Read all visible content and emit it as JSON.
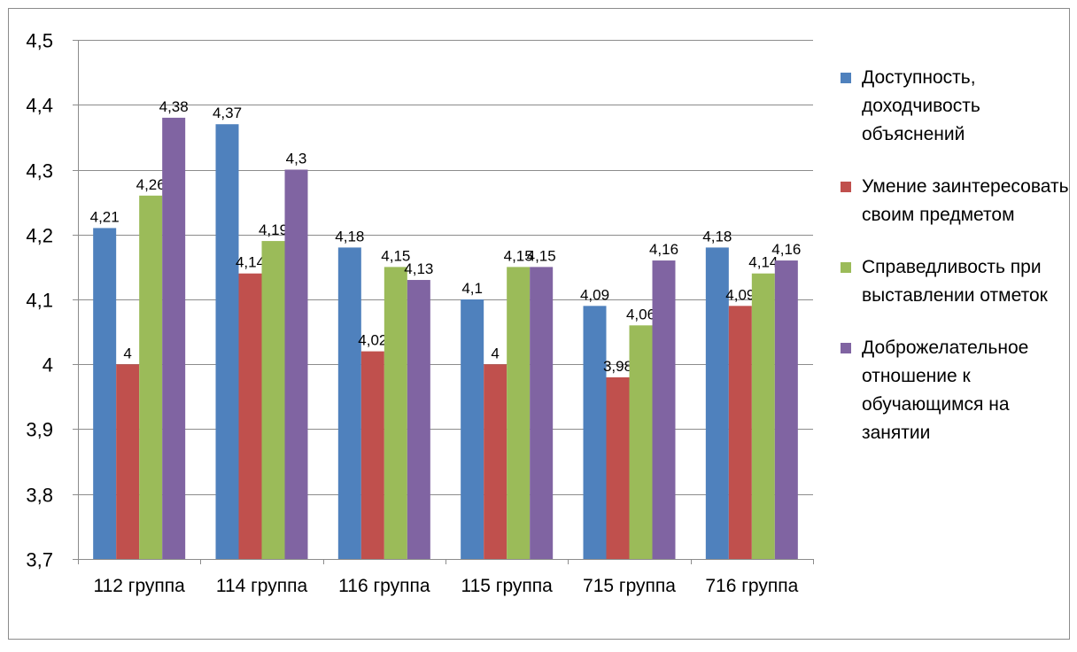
{
  "chart_data": {
    "type": "bar",
    "categories": [
      "112 группа",
      "114 группа",
      "116 группа",
      "115 группа",
      "715 группа",
      "716 группа"
    ],
    "series": [
      {
        "name": "Доступность, доходчивость объяснений",
        "color": "#4F81BD",
        "values": [
          4.21,
          4.37,
          4.18,
          4.1,
          4.09,
          4.18
        ],
        "labels": [
          "4,21",
          "4,37",
          "4,18",
          "4,1",
          "4,09",
          "4,18"
        ]
      },
      {
        "name": "Умение заинтересовать своим предметом",
        "color": "#C0504D",
        "values": [
          4.0,
          4.14,
          4.02,
          4.0,
          3.98,
          4.09
        ],
        "labels": [
          "4",
          "4,14",
          "4,02",
          "4",
          "3,98",
          "4,09"
        ]
      },
      {
        "name": "Справедливость при выставлении отметок",
        "color": "#9BBB59",
        "values": [
          4.26,
          4.19,
          4.15,
          4.15,
          4.06,
          4.14
        ],
        "labels": [
          "4,26",
          "4,19",
          "4,15",
          "4,15",
          "4,06",
          "4,14"
        ]
      },
      {
        "name": "Доброжелательное отношение к обучающимся на занятии",
        "color": "#8064A2",
        "values": [
          4.38,
          4.3,
          4.13,
          4.15,
          4.16,
          4.16
        ],
        "labels": [
          "4,38",
          "4,3",
          "4,13",
          "4,15",
          "4,16",
          "4,16"
        ]
      }
    ],
    "ylim": [
      3.7,
      4.5
    ],
    "yticks": [
      "3,7",
      "3,8",
      "3,9",
      "4",
      "4,1",
      "4,2",
      "4,3",
      "4,4",
      "4,5"
    ],
    "grid": true,
    "legend_position": "right"
  }
}
